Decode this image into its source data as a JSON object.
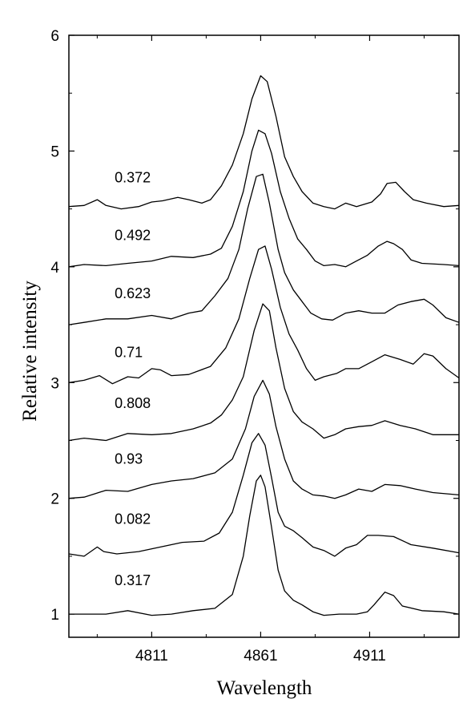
{
  "chart_data": {
    "type": "line",
    "title": "",
    "xlabel": "Wavelength",
    "ylabel": "Relative intensity",
    "xlim": [
      4773,
      4952
    ],
    "ylim": [
      0.8,
      6.0
    ],
    "x_ticks": [
      "4811",
      "4861",
      "4911"
    ],
    "y_ticks": [
      "1",
      "2",
      "3",
      "4",
      "5",
      "6"
    ],
    "grid": false,
    "legend": "none",
    "line_color": "#000000",
    "series": [
      {
        "label": "0.317",
        "label_x": 4794,
        "label_y": 1.25,
        "points": [
          [
            4773,
            1.0
          ],
          [
            4790,
            1.0
          ],
          [
            4800,
            1.03
          ],
          [
            4811,
            0.99
          ],
          [
            4820,
            1.0
          ],
          [
            4830,
            1.03
          ],
          [
            4840,
            1.05
          ],
          [
            4848,
            1.17
          ],
          [
            4853,
            1.5
          ],
          [
            4856,
            1.85
          ],
          [
            4859,
            2.15
          ],
          [
            4861,
            2.2
          ],
          [
            4863,
            2.1
          ],
          [
            4866,
            1.75
          ],
          [
            4869,
            1.38
          ],
          [
            4872,
            1.2
          ],
          [
            4876,
            1.12
          ],
          [
            4880,
            1.08
          ],
          [
            4885,
            1.02
          ],
          [
            4890,
            0.99
          ],
          [
            4897,
            1.0
          ],
          [
            4905,
            1.0
          ],
          [
            4910,
            1.02
          ],
          [
            4913,
            1.08
          ],
          [
            4918,
            1.19
          ],
          [
            4922,
            1.16
          ],
          [
            4926,
            1.07
          ],
          [
            4935,
            1.03
          ],
          [
            4945,
            1.02
          ],
          [
            4952,
            1.0
          ]
        ]
      },
      {
        "label": "0.082",
        "label_x": 4794,
        "label_y": 1.78,
        "points": [
          [
            4773,
            1.52
          ],
          [
            4780,
            1.5
          ],
          [
            4786,
            1.58
          ],
          [
            4789,
            1.54
          ],
          [
            4795,
            1.52
          ],
          [
            4805,
            1.54
          ],
          [
            4815,
            1.58
          ],
          [
            4825,
            1.62
          ],
          [
            4835,
            1.63
          ],
          [
            4842,
            1.7
          ],
          [
            4848,
            1.88
          ],
          [
            4853,
            2.2
          ],
          [
            4857,
            2.48
          ],
          [
            4860,
            2.56
          ],
          [
            4863,
            2.46
          ],
          [
            4866,
            2.18
          ],
          [
            4869,
            1.88
          ],
          [
            4872,
            1.76
          ],
          [
            4876,
            1.72
          ],
          [
            4880,
            1.66
          ],
          [
            4885,
            1.58
          ],
          [
            4890,
            1.55
          ],
          [
            4895,
            1.5
          ],
          [
            4900,
            1.57
          ],
          [
            4905,
            1.6
          ],
          [
            4910,
            1.68
          ],
          [
            4915,
            1.68
          ],
          [
            4922,
            1.67
          ],
          [
            4930,
            1.6
          ],
          [
            4940,
            1.57
          ],
          [
            4952,
            1.53
          ]
        ]
      },
      {
        "label": "0.93",
        "label_x": 4794,
        "label_y": 2.3,
        "points": [
          [
            4773,
            2.0
          ],
          [
            4780,
            2.01
          ],
          [
            4790,
            2.07
          ],
          [
            4800,
            2.06
          ],
          [
            4811,
            2.12
          ],
          [
            4820,
            2.15
          ],
          [
            4830,
            2.17
          ],
          [
            4840,
            2.22
          ],
          [
            4848,
            2.34
          ],
          [
            4854,
            2.6
          ],
          [
            4858,
            2.88
          ],
          [
            4862,
            3.02
          ],
          [
            4865,
            2.9
          ],
          [
            4868,
            2.62
          ],
          [
            4872,
            2.34
          ],
          [
            4876,
            2.15
          ],
          [
            4880,
            2.08
          ],
          [
            4885,
            2.03
          ],
          [
            4890,
            2.02
          ],
          [
            4895,
            2.0
          ],
          [
            4900,
            2.03
          ],
          [
            4906,
            2.08
          ],
          [
            4912,
            2.06
          ],
          [
            4918,
            2.12
          ],
          [
            4925,
            2.11
          ],
          [
            4932,
            2.08
          ],
          [
            4940,
            2.05
          ],
          [
            4952,
            2.03
          ]
        ]
      },
      {
        "label": "0.808",
        "label_x": 4794,
        "label_y": 2.78,
        "points": [
          [
            4773,
            2.5
          ],
          [
            4780,
            2.52
          ],
          [
            4790,
            2.5
          ],
          [
            4800,
            2.56
          ],
          [
            4811,
            2.55
          ],
          [
            4820,
            2.56
          ],
          [
            4830,
            2.6
          ],
          [
            4838,
            2.65
          ],
          [
            4843,
            2.72
          ],
          [
            4848,
            2.85
          ],
          [
            4853,
            3.05
          ],
          [
            4858,
            3.45
          ],
          [
            4862,
            3.68
          ],
          [
            4865,
            3.62
          ],
          [
            4868,
            3.3
          ],
          [
            4872,
            2.95
          ],
          [
            4876,
            2.75
          ],
          [
            4880,
            2.66
          ],
          [
            4885,
            2.6
          ],
          [
            4890,
            2.52
          ],
          [
            4895,
            2.55
          ],
          [
            4900,
            2.6
          ],
          [
            4906,
            2.62
          ],
          [
            4912,
            2.63
          ],
          [
            4918,
            2.67
          ],
          [
            4925,
            2.63
          ],
          [
            4932,
            2.6
          ],
          [
            4940,
            2.55
          ],
          [
            4952,
            2.55
          ]
        ]
      },
      {
        "label": "0.71",
        "label_x": 4794,
        "label_y": 3.22,
        "points": [
          [
            4773,
            3.0
          ],
          [
            4780,
            3.02
          ],
          [
            4787,
            3.06
          ],
          [
            4793,
            2.99
          ],
          [
            4800,
            3.05
          ],
          [
            4805,
            3.04
          ],
          [
            4811,
            3.12
          ],
          [
            4815,
            3.11
          ],
          [
            4820,
            3.06
          ],
          [
            4828,
            3.07
          ],
          [
            4838,
            3.14
          ],
          [
            4845,
            3.3
          ],
          [
            4851,
            3.55
          ],
          [
            4856,
            3.9
          ],
          [
            4860,
            4.15
          ],
          [
            4863,
            4.18
          ],
          [
            4866,
            3.98
          ],
          [
            4870,
            3.65
          ],
          [
            4874,
            3.42
          ],
          [
            4878,
            3.28
          ],
          [
            4882,
            3.12
          ],
          [
            4886,
            3.02
          ],
          [
            4890,
            3.05
          ],
          [
            4896,
            3.08
          ],
          [
            4900,
            3.12
          ],
          [
            4906,
            3.12
          ],
          [
            4912,
            3.18
          ],
          [
            4918,
            3.24
          ],
          [
            4925,
            3.2
          ],
          [
            4931,
            3.16
          ],
          [
            4936,
            3.25
          ],
          [
            4940,
            3.23
          ],
          [
            4946,
            3.12
          ],
          [
            4952,
            3.04
          ]
        ]
      },
      {
        "label": "0.623",
        "label_x": 4794,
        "label_y": 3.73,
        "points": [
          [
            4773,
            3.5
          ],
          [
            4780,
            3.52
          ],
          [
            4790,
            3.55
          ],
          [
            4800,
            3.55
          ],
          [
            4811,
            3.58
          ],
          [
            4820,
            3.55
          ],
          [
            4828,
            3.6
          ],
          [
            4834,
            3.62
          ],
          [
            4840,
            3.75
          ],
          [
            4846,
            3.9
          ],
          [
            4851,
            4.15
          ],
          [
            4855,
            4.5
          ],
          [
            4859,
            4.78
          ],
          [
            4862,
            4.8
          ],
          [
            4865,
            4.55
          ],
          [
            4869,
            4.15
          ],
          [
            4872,
            3.95
          ],
          [
            4876,
            3.8
          ],
          [
            4880,
            3.7
          ],
          [
            4884,
            3.6
          ],
          [
            4889,
            3.55
          ],
          [
            4894,
            3.54
          ],
          [
            4900,
            3.6
          ],
          [
            4906,
            3.62
          ],
          [
            4912,
            3.6
          ],
          [
            4918,
            3.6
          ],
          [
            4924,
            3.67
          ],
          [
            4930,
            3.7
          ],
          [
            4936,
            3.72
          ],
          [
            4940,
            3.67
          ],
          [
            4946,
            3.56
          ],
          [
            4952,
            3.52
          ]
        ]
      },
      {
        "label": "0.492",
        "label_x": 4794,
        "label_y": 4.23,
        "points": [
          [
            4773,
            4.0
          ],
          [
            4780,
            4.02
          ],
          [
            4790,
            4.01
          ],
          [
            4800,
            4.03
          ],
          [
            4811,
            4.05
          ],
          [
            4820,
            4.09
          ],
          [
            4830,
            4.08
          ],
          [
            4838,
            4.11
          ],
          [
            4843,
            4.16
          ],
          [
            4848,
            4.35
          ],
          [
            4853,
            4.65
          ],
          [
            4857,
            5.0
          ],
          [
            4860,
            5.18
          ],
          [
            4863,
            5.15
          ],
          [
            4866,
            4.98
          ],
          [
            4870,
            4.65
          ],
          [
            4874,
            4.42
          ],
          [
            4878,
            4.24
          ],
          [
            4882,
            4.15
          ],
          [
            4886,
            4.05
          ],
          [
            4890,
            4.01
          ],
          [
            4895,
            4.02
          ],
          [
            4900,
            4.0
          ],
          [
            4905,
            4.05
          ],
          [
            4910,
            4.1
          ],
          [
            4915,
            4.18
          ],
          [
            4919,
            4.22
          ],
          [
            4922,
            4.2
          ],
          [
            4926,
            4.15
          ],
          [
            4930,
            4.06
          ],
          [
            4935,
            4.03
          ],
          [
            4945,
            4.02
          ],
          [
            4952,
            4.01
          ]
        ]
      },
      {
        "label": "0.372",
        "label_x": 4794,
        "label_y": 4.73,
        "points": [
          [
            4773,
            4.52
          ],
          [
            4780,
            4.53
          ],
          [
            4786,
            4.58
          ],
          [
            4790,
            4.53
          ],
          [
            4797,
            4.5
          ],
          [
            4805,
            4.52
          ],
          [
            4811,
            4.56
          ],
          [
            4816,
            4.57
          ],
          [
            4823,
            4.6
          ],
          [
            4828,
            4.58
          ],
          [
            4834,
            4.55
          ],
          [
            4838,
            4.58
          ],
          [
            4843,
            4.7
          ],
          [
            4848,
            4.88
          ],
          [
            4853,
            5.15
          ],
          [
            4857,
            5.45
          ],
          [
            4861,
            5.65
          ],
          [
            4864,
            5.6
          ],
          [
            4868,
            5.3
          ],
          [
            4872,
            4.95
          ],
          [
            4876,
            4.78
          ],
          [
            4880,
            4.65
          ],
          [
            4885,
            4.55
          ],
          [
            4890,
            4.52
          ],
          [
            4895,
            4.5
          ],
          [
            4900,
            4.55
          ],
          [
            4905,
            4.52
          ],
          [
            4912,
            4.56
          ],
          [
            4916,
            4.63
          ],
          [
            4919,
            4.72
          ],
          [
            4923,
            4.73
          ],
          [
            4927,
            4.65
          ],
          [
            4931,
            4.58
          ],
          [
            4937,
            4.55
          ],
          [
            4945,
            4.52
          ],
          [
            4952,
            4.53
          ]
        ]
      }
    ]
  }
}
